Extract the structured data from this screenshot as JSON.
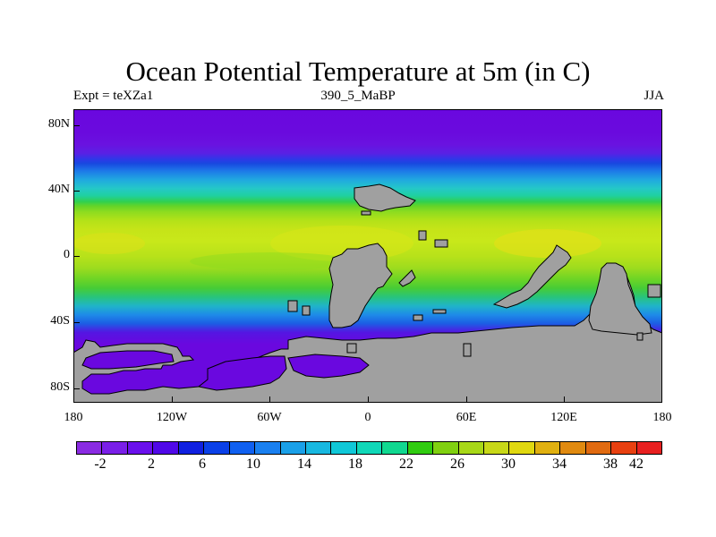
{
  "title": "Ocean Potential Temperature at 5m (in C)",
  "subtitle_left": "Expt = teXZa1",
  "subtitle_center": "390_5_MaBP",
  "subtitle_right": "JJA",
  "y_axis": {
    "labels": [
      "80N",
      "40N",
      "0",
      "40S",
      "80S"
    ]
  },
  "x_axis": {
    "labels": [
      "180",
      "120W",
      "60W",
      "0",
      "60E",
      "120E",
      "180"
    ]
  },
  "colorbar": {
    "colors": [
      "#8a2be2",
      "#7a1fe8",
      "#6a10ec",
      "#5008e8",
      "#1020e0",
      "#0a40e8",
      "#1060f0",
      "#1a80f0",
      "#1aa0e8",
      "#18b8e0",
      "#10c8d8",
      "#10d8b8",
      "#10d890",
      "#30cc10",
      "#80d010",
      "#a8d818",
      "#c8d818",
      "#e0d810",
      "#e0b010",
      "#e08a10",
      "#e06a10",
      "#e84010",
      "#e82020"
    ],
    "labels": [
      "-2",
      "2",
      "6",
      "10",
      "14",
      "18",
      "22",
      "26",
      "30",
      "34",
      "38",
      "42"
    ]
  },
  "colors": {
    "land": "#a0a0a0",
    "land_outline": "#000000"
  }
}
